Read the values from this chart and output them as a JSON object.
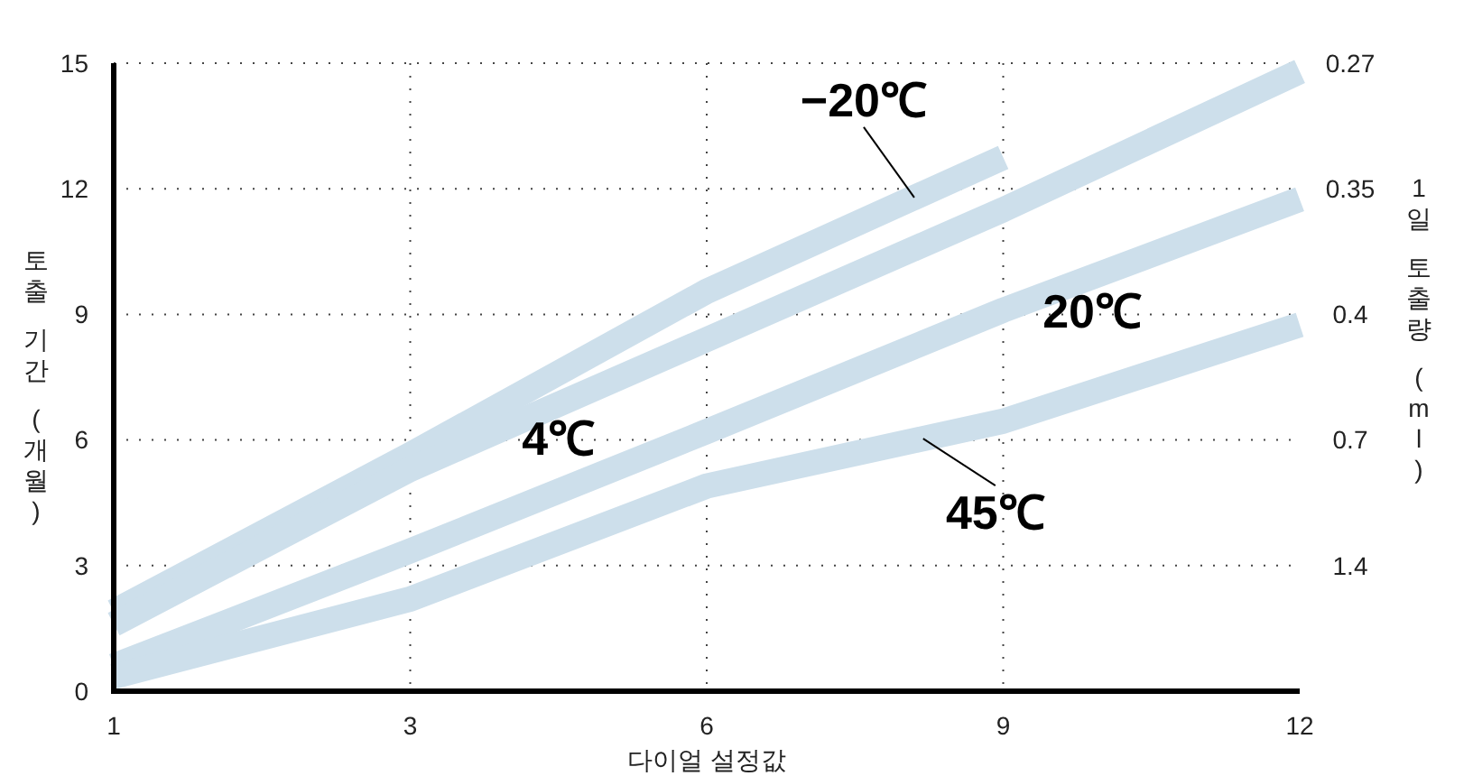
{
  "chart_data": {
    "type": "line",
    "xlabel": "다이얼 설정값",
    "ylabel": "토출 기간 (개월)",
    "y2label": "1일 토출량 (ml)",
    "categories": [
      "1",
      "3",
      "6",
      "9",
      "12"
    ],
    "ylim": [
      0,
      15
    ],
    "yticks": [
      0,
      3,
      6,
      9,
      12,
      15
    ],
    "annotations": [
      "1.4",
      "0.7",
      "0.4",
      "0.35",
      "0.27"
    ],
    "grid": true,
    "line_style": "solid",
    "series": [
      {
        "name": "−20℃",
        "color": "#cddfeb",
        "values": [
          1.9,
          5.65,
          9.55,
          12.75,
          null
        ]
      },
      {
        "name": "4℃",
        "color": "#cddfeb",
        "values": [
          1.6,
          5.3,
          8.4,
          11.5,
          14.8
        ]
      },
      {
        "name": "20℃",
        "color": "#cddfeb",
        "values": [
          0.6,
          3.35,
          6.2,
          9.1,
          11.75
        ]
      },
      {
        "name": "45℃",
        "color": "#cddfeb",
        "values": [
          0.35,
          2.2,
          4.9,
          6.45,
          8.75
        ]
      }
    ]
  }
}
